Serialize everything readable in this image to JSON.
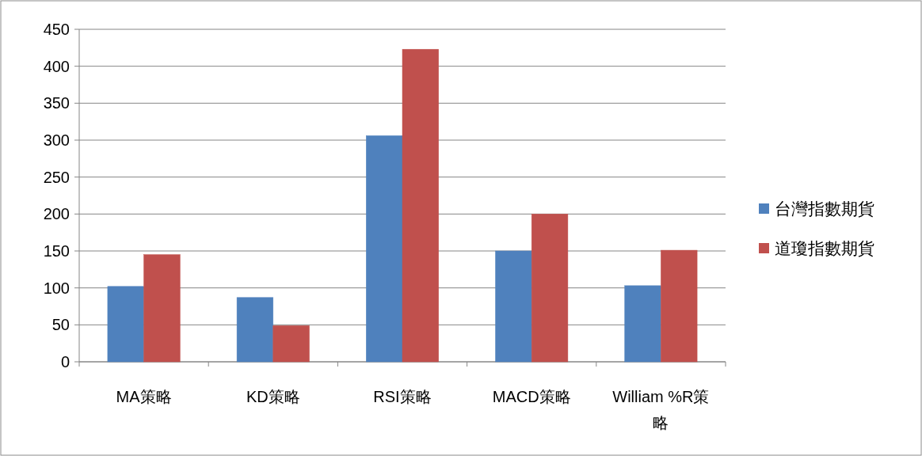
{
  "chart_data": {
    "type": "bar",
    "categories": [
      "MA策略",
      "KD策略",
      "RSI策略",
      "MACD策略",
      "William %R策略"
    ],
    "series": [
      {
        "name": "台灣指數期貨",
        "color": "#4f81bd",
        "values": [
          102,
          87,
          306,
          150,
          103
        ]
      },
      {
        "name": "道瓊指數期貨",
        "color": "#c0504d",
        "values": [
          145,
          49,
          423,
          200,
          151
        ]
      }
    ],
    "ylim": [
      0,
      450
    ],
    "yticks": [
      0,
      50,
      100,
      150,
      200,
      250,
      300,
      350,
      400,
      450
    ],
    "grid": "y",
    "legend": "right"
  }
}
